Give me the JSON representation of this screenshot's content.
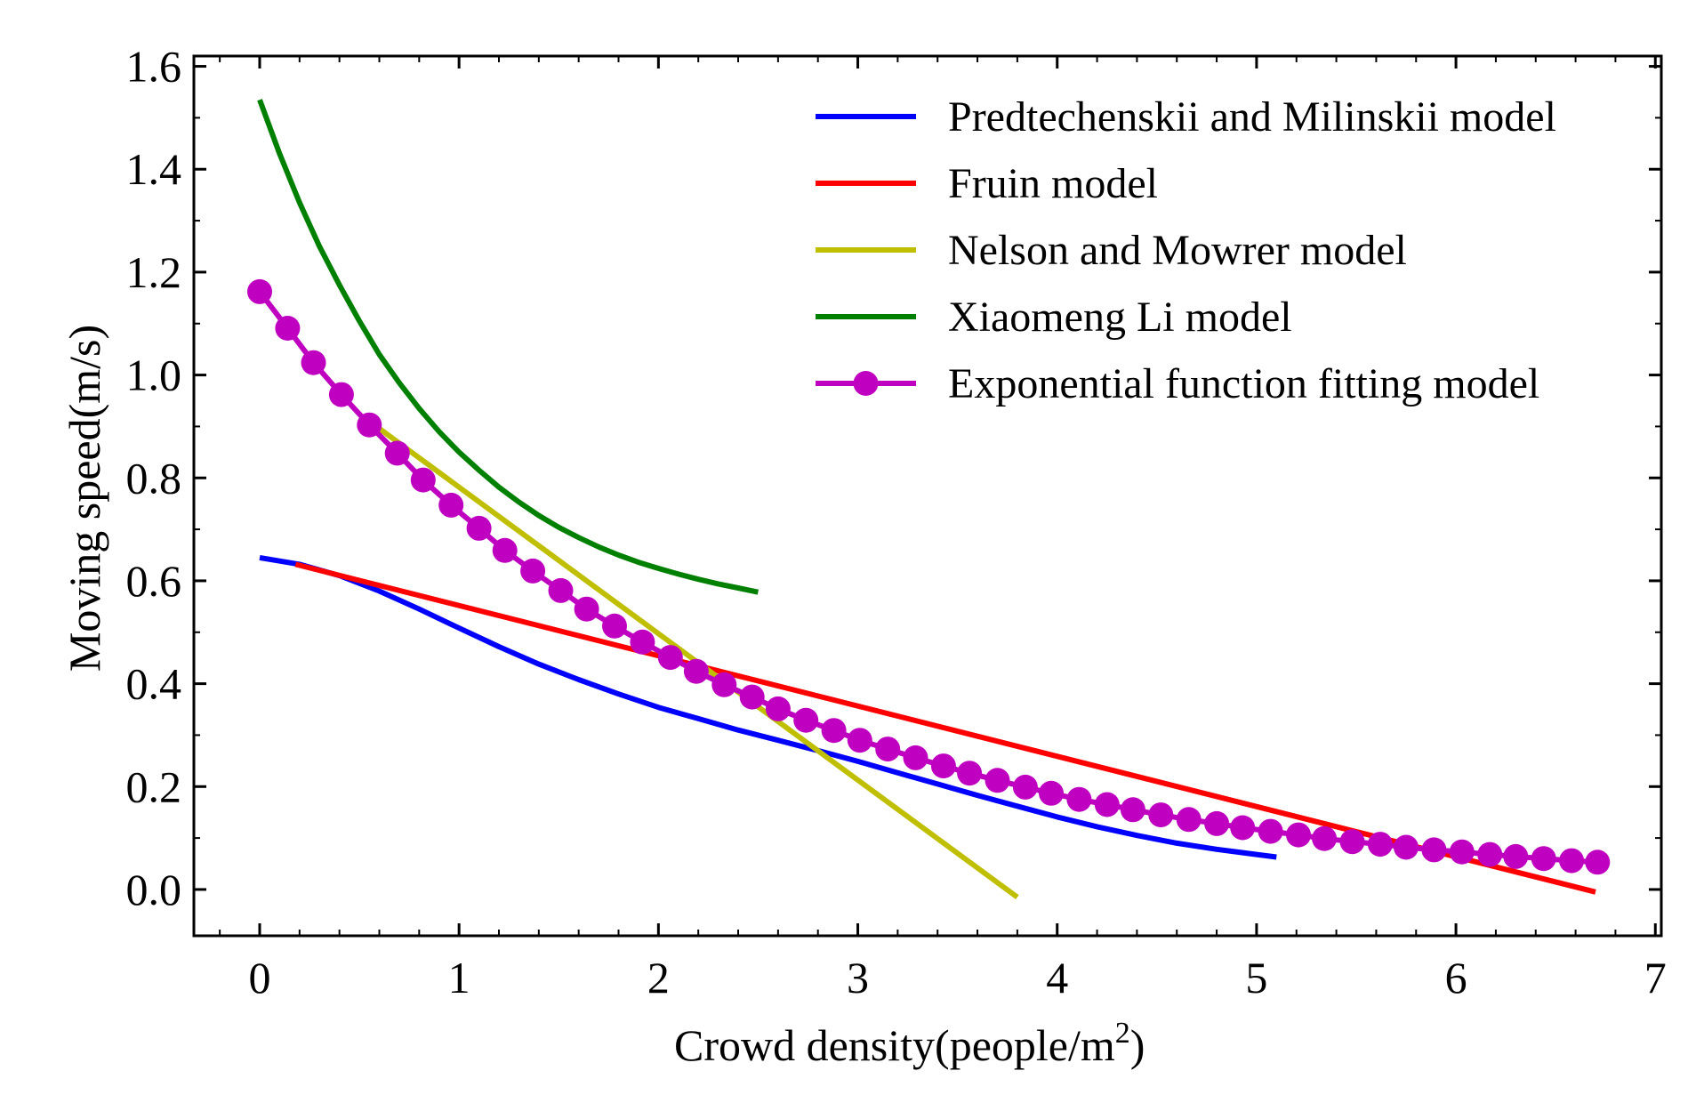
{
  "chart_data": {
    "type": "line",
    "title": "",
    "xlabel": "Crowd density(people/m",
    "xlabel_sup": "2",
    "xlabel_suffix": ")",
    "ylabel": "Moving speed(m/s)",
    "xlim": [
      -0.33,
      7.03
    ],
    "ylim": [
      -0.09,
      1.62
    ],
    "xticks": [
      0,
      1,
      2,
      3,
      4,
      5,
      6,
      7
    ],
    "yticks": [
      0.0,
      0.2,
      0.4,
      0.6,
      0.8,
      1.0,
      1.2,
      1.4,
      1.6
    ],
    "ytick_labels": [
      "0.0",
      "0.2",
      "0.4",
      "0.6",
      "0.8",
      "1.0",
      "1.2",
      "1.4",
      "1.6"
    ],
    "legend_position": "top-right",
    "series": [
      {
        "name": "Predtechenskii and Milinskii model",
        "color": "#0000ff",
        "marker": "none",
        "x": [
          0,
          0.2,
          0.4,
          0.6,
          0.8,
          1.0,
          1.2,
          1.4,
          1.6,
          1.8,
          2.0,
          2.2,
          2.4,
          2.6,
          2.8,
          3.0,
          3.2,
          3.4,
          3.6,
          3.8,
          4.0,
          4.2,
          4.4,
          4.6,
          4.8,
          5.0,
          5.1
        ],
        "values": [
          0.645,
          0.632,
          0.61,
          0.58,
          0.545,
          0.508,
          0.472,
          0.438,
          0.408,
          0.38,
          0.354,
          0.332,
          0.31,
          0.29,
          0.27,
          0.249,
          0.227,
          0.205,
          0.183,
          0.162,
          0.141,
          0.122,
          0.105,
          0.09,
          0.078,
          0.068,
          0.063
        ]
      },
      {
        "name": "Fruin model",
        "color": "#ff0000",
        "marker": "none",
        "x": [
          0.18,
          6.7
        ],
        "values": [
          0.632,
          -0.005
        ]
      },
      {
        "name": "Nelson and Mowrer model",
        "color": "#bfbf00",
        "marker": "none",
        "x": [
          0.55,
          3.8
        ],
        "values": [
          0.91,
          -0.015
        ]
      },
      {
        "name": "Xiaomeng Li model",
        "color": "#008000",
        "marker": "none",
        "x": [
          0,
          0.1,
          0.2,
          0.3,
          0.4,
          0.5,
          0.6,
          0.7,
          0.8,
          0.9,
          1.0,
          1.1,
          1.2,
          1.3,
          1.4,
          1.5,
          1.6,
          1.7,
          1.8,
          1.9,
          2.0,
          2.1,
          2.2,
          2.3,
          2.4,
          2.5
        ],
        "values": [
          1.535,
          1.43,
          1.335,
          1.25,
          1.175,
          1.105,
          1.04,
          0.985,
          0.935,
          0.89,
          0.85,
          0.815,
          0.782,
          0.753,
          0.727,
          0.704,
          0.684,
          0.666,
          0.65,
          0.636,
          0.624,
          0.613,
          0.603,
          0.594,
          0.586,
          0.578
        ]
      },
      {
        "name": "Exponential function fitting model",
        "color": "#c000c0",
        "marker": "circle",
        "x": [
          0.0,
          0.14,
          0.27,
          0.41,
          0.55,
          0.69,
          0.82,
          0.96,
          1.1,
          1.23,
          1.37,
          1.51,
          1.64,
          1.78,
          1.92,
          2.06,
          2.19,
          2.33,
          2.47,
          2.6,
          2.74,
          2.88,
          3.01,
          3.15,
          3.29,
          3.43,
          3.56,
          3.7,
          3.84,
          3.97,
          4.11,
          4.25,
          4.38,
          4.52,
          4.66,
          4.8,
          4.93,
          5.07,
          5.21,
          5.34,
          5.48,
          5.62,
          5.75,
          5.89,
          6.03,
          6.17,
          6.3,
          6.44,
          6.58,
          6.71
        ],
        "values": [
          1.162,
          1.091,
          1.024,
          0.962,
          0.903,
          0.848,
          0.796,
          0.747,
          0.702,
          0.659,
          0.619,
          0.581,
          0.545,
          0.512,
          0.481,
          0.451,
          0.424,
          0.398,
          0.374,
          0.351,
          0.329,
          0.309,
          0.29,
          0.273,
          0.256,
          0.24,
          0.226,
          0.212,
          0.199,
          0.187,
          0.175,
          0.165,
          0.155,
          0.145,
          0.136,
          0.128,
          0.12,
          0.113,
          0.106,
          0.099,
          0.093,
          0.088,
          0.082,
          0.077,
          0.073,
          0.068,
          0.064,
          0.06,
          0.056,
          0.053
        ]
      }
    ]
  }
}
